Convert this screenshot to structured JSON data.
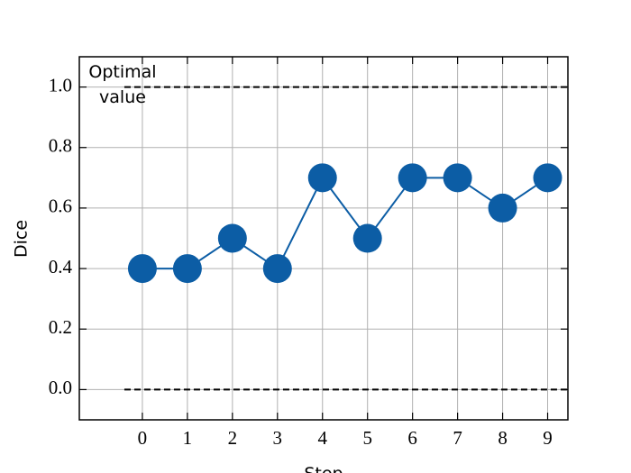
{
  "chart_data": {
    "type": "line",
    "x_label": "Step",
    "y_label": "Dice",
    "x": [
      0,
      1,
      2,
      3,
      4,
      5,
      6,
      7,
      8,
      9
    ],
    "series": [
      {
        "color": "#0c5da5",
        "values": [
          0.4,
          0.4,
          0.5,
          0.4,
          0.7,
          0.5,
          0.7,
          0.7,
          0.6,
          0.7
        ]
      }
    ],
    "xlim": [
      -1.4,
      9.45
    ],
    "ylim": [
      -0.1,
      1.1
    ],
    "xticks": [
      0,
      1,
      2,
      3,
      4,
      5,
      6,
      7,
      8,
      9
    ],
    "yticks": [
      {
        "value": 0,
        "label": "0.0"
      },
      {
        "value": 0.2,
        "label": "0.2"
      },
      {
        "value": 0.4,
        "label": "0.4"
      },
      {
        "value": 0.6,
        "label": "0.6"
      },
      {
        "value": 0.8,
        "label": "0.8"
      },
      {
        "value": 1,
        "label": "1.0"
      }
    ],
    "grid": true,
    "hlines": [
      {
        "y": 1,
        "xmin": -0.4
      },
      {
        "y": 0,
        "xmin": -0.4
      }
    ],
    "annotation": "Optimal value"
  }
}
